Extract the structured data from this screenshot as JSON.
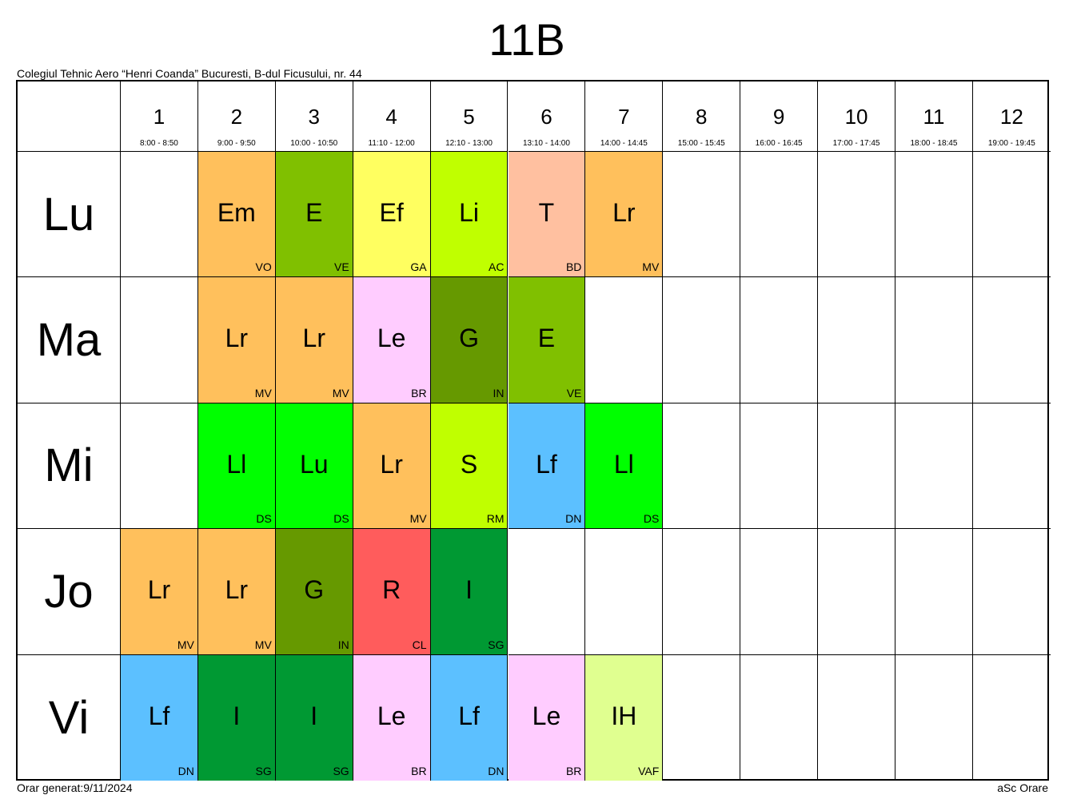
{
  "title": "11B",
  "school": "Colegiul Tehnic Aero “Henri Coanda” Bucuresti, B-dul Ficusului, nr. 44",
  "footer": {
    "generated": "Orar generat:9/11/2024",
    "software": "aSc Orare"
  },
  "periods": [
    {
      "num": "1",
      "time": "8:00 - 8:50"
    },
    {
      "num": "2",
      "time": "9:00 - 9:50"
    },
    {
      "num": "3",
      "time": "10:00 - 10:50"
    },
    {
      "num": "4",
      "time": "11:10 - 12:00"
    },
    {
      "num": "5",
      "time": "12:10 - 13:00"
    },
    {
      "num": "6",
      "time": "13:10 - 14:00"
    },
    {
      "num": "7",
      "time": "14:00 - 14:45"
    },
    {
      "num": "8",
      "time": "15:00 - 15:45"
    },
    {
      "num": "9",
      "time": "16:00 - 16:45"
    },
    {
      "num": "10",
      "time": "17:00 - 17:45"
    },
    {
      "num": "11",
      "time": "18:00 - 18:45"
    },
    {
      "num": "12",
      "time": "19:00 - 19:45"
    }
  ],
  "days": [
    "Lu",
    "Ma",
    "Mi",
    "Jo",
    "Vi"
  ],
  "schedule": [
    [
      null,
      {
        "s": "Em",
        "t": "VO",
        "c": "#FFC05C"
      },
      {
        "s": "E",
        "t": "VE",
        "c": "#80C000"
      },
      {
        "s": "Ef",
        "t": "GA",
        "c": "#FFFF60"
      },
      {
        "s": "Li",
        "t": "AC",
        "c": "#C0FF00"
      },
      {
        "s": "T",
        "t": "BD",
        "c": "#FFC0A0"
      },
      {
        "s": "Lr",
        "t": "MV",
        "c": "#FFC05C"
      },
      null,
      null,
      null,
      null,
      null
    ],
    [
      null,
      {
        "s": "Lr",
        "t": "MV",
        "c": "#FFC05C"
      },
      {
        "s": "Lr",
        "t": "MV",
        "c": "#FFC05C"
      },
      {
        "s": "Le",
        "t": "BR",
        "c": "#FFCCFF"
      },
      {
        "s": "G",
        "t": "IN",
        "c": "#669900"
      },
      {
        "s": "E",
        "t": "VE",
        "c": "#80C000"
      },
      null,
      null,
      null,
      null,
      null,
      null
    ],
    [
      null,
      {
        "s": "Ll",
        "t": "DS",
        "c": "#00FF00"
      },
      {
        "s": "Lu",
        "t": "DS",
        "c": "#00FF00"
      },
      {
        "s": "Lr",
        "t": "MV",
        "c": "#FFC05C"
      },
      {
        "s": "S",
        "t": "RM",
        "c": "#C0FF00"
      },
      {
        "s": "Lf",
        "t": "DN",
        "c": "#5CC0FF"
      },
      {
        "s": "Ll",
        "t": "DS",
        "c": "#00FF00"
      },
      null,
      null,
      null,
      null,
      null
    ],
    [
      {
        "s": "Lr",
        "t": "MV",
        "c": "#FFC05C"
      },
      {
        "s": "Lr",
        "t": "MV",
        "c": "#FFC05C"
      },
      {
        "s": "G",
        "t": "IN",
        "c": "#669900"
      },
      {
        "s": "R",
        "t": "CL",
        "c": "#FF5C5C"
      },
      {
        "s": "I",
        "t": "SG",
        "c": "#009933"
      },
      null,
      null,
      null,
      null,
      null,
      null,
      null
    ],
    [
      {
        "s": "Lf",
        "t": "DN",
        "c": "#5CC0FF"
      },
      {
        "s": "I",
        "t": "SG",
        "c": "#009933"
      },
      {
        "s": "I",
        "t": "SG",
        "c": "#009933"
      },
      {
        "s": "Le",
        "t": "BR",
        "c": "#FFCCFF"
      },
      {
        "s": "Lf",
        "t": "DN",
        "c": "#5CC0FF"
      },
      {
        "s": "Le",
        "t": "BR",
        "c": "#FFCCFF"
      },
      {
        "s": "IH",
        "t": "VAF",
        "c": "#E0FF90"
      },
      null,
      null,
      null,
      null,
      null
    ]
  ]
}
